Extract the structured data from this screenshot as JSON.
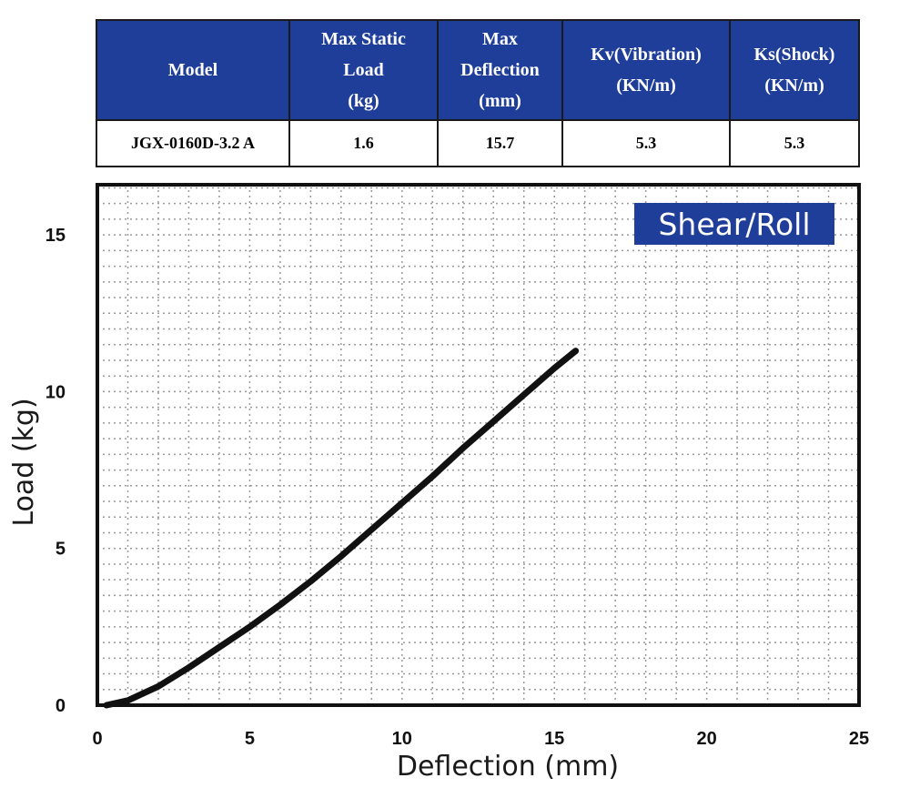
{
  "table": {
    "headers": [
      "Model",
      "Max Static\nLoad\n(kg)",
      "Max\nDeflection\n(mm)",
      "Kv(Vibration)\n(KN/m)",
      "Ks(Shock)\n(KN/m)"
    ],
    "row": [
      "JGX-0160D-3.2 A",
      "1.6",
      "15.7",
      "5.3",
      "5.3"
    ]
  },
  "colors": {
    "header_bg": "#1f3e9a",
    "badge_bg": "#1f3e9a",
    "curve": "#111111",
    "grid": "#9a9a9a"
  },
  "chart_data": {
    "type": "line",
    "badge": "Shear/Roll",
    "xlabel": "Deflection (mm)",
    "ylabel": "Load (kg)",
    "xlim": [
      0,
      25
    ],
    "ylim": [
      0,
      16.6
    ],
    "xticks": [
      0,
      5,
      10,
      15,
      20,
      25
    ],
    "yticks": [
      0,
      5,
      10,
      15
    ],
    "grid": true,
    "series": [
      {
        "x": [
          0.3,
          1,
          2,
          3,
          4,
          5,
          6,
          7,
          8,
          9,
          10,
          11,
          12,
          13,
          14,
          15,
          15.7
        ],
        "y": [
          0,
          0.15,
          0.6,
          1.2,
          1.85,
          2.5,
          3.2,
          3.95,
          4.75,
          5.6,
          6.45,
          7.3,
          8.2,
          9.05,
          9.9,
          10.75,
          11.3
        ]
      }
    ]
  }
}
